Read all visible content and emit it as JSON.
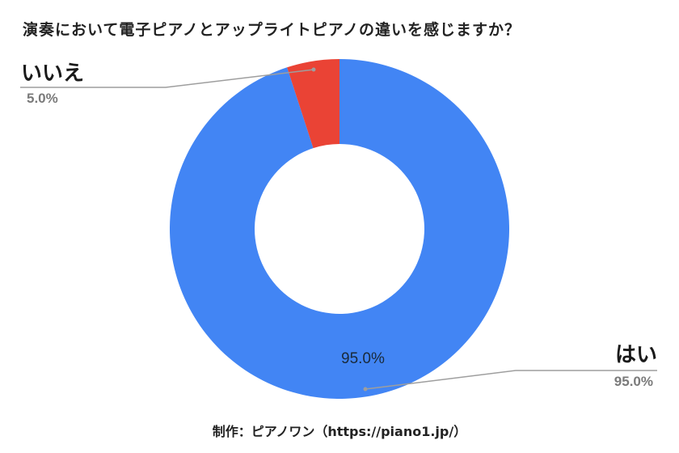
{
  "title": "演奏において電子ピアノとアップライトピアノの違いを感じますか？",
  "footer": "制作：ピアノワン（https://piano1.jp/）",
  "colors": {
    "yes": "#4285F4",
    "no": "#EA4335",
    "leader": "#9E9E9E",
    "pct_text": "#7A7A7A"
  },
  "labels": {
    "no": {
      "name": "いいえ",
      "pct": "5.0%"
    },
    "yes": {
      "name": "はい",
      "pct": "95.0%",
      "inner_pct": "95.0%"
    }
  },
  "chart_data": {
    "type": "pie",
    "subtype": "donut",
    "title": "演奏において電子ピアノとアップライトピアノの違いを感じますか？",
    "categories": [
      "はい",
      "いいえ"
    ],
    "values": [
      95.0,
      5.0
    ],
    "unit": "%",
    "colors": [
      "#4285F4",
      "#EA4335"
    ],
    "data_labels": [
      "95.0%",
      "5.0%"
    ],
    "legend": "none (leader-line labels)",
    "start_angle": "12 o'clock, counter-clockwise for いいえ",
    "footer": "制作：ピアノワン（https://piano1.jp/）"
  }
}
